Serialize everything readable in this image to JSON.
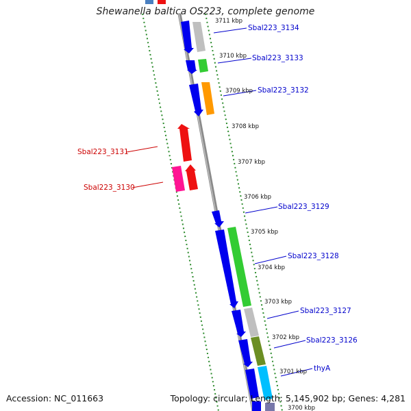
{
  "title": "Shewanella baltica OS223, complete genome",
  "footer": {
    "accession": "Accession: NC_011663",
    "summary": "Topology: circular; Length: 5,145,902 bp; Genes: 4,281"
  },
  "colors": {
    "forward_label": "#0000cc",
    "reverse_label": "#cc0000",
    "backbone": "#7a7a7a",
    "tick": "#2a8a2a"
  },
  "kbp_ticks": [
    "3711 kbp",
    "3710 kbp",
    "3709 kbp",
    "3708 kbp",
    "3707 kbp",
    "3706 kbp",
    "3705 kbp",
    "3704 kbp",
    "3703 kbp",
    "3702 kbp",
    "3701 kbp",
    "3700 kbp"
  ],
  "gene_labels": {
    "sbal3134": "Sbal223_3134",
    "sbal3133": "Sbal223_3133",
    "sbal3132": "Sbal223_3132",
    "sbal3131": "Sbal223_3131",
    "sbal3130": "Sbal223_3130",
    "sbal3129": "Sbal223_3129",
    "sbal3128": "Sbal223_3128",
    "sbal3127": "Sbal223_3127",
    "sbal3126": "Sbal223_3126",
    "thyA": "thyA"
  }
}
